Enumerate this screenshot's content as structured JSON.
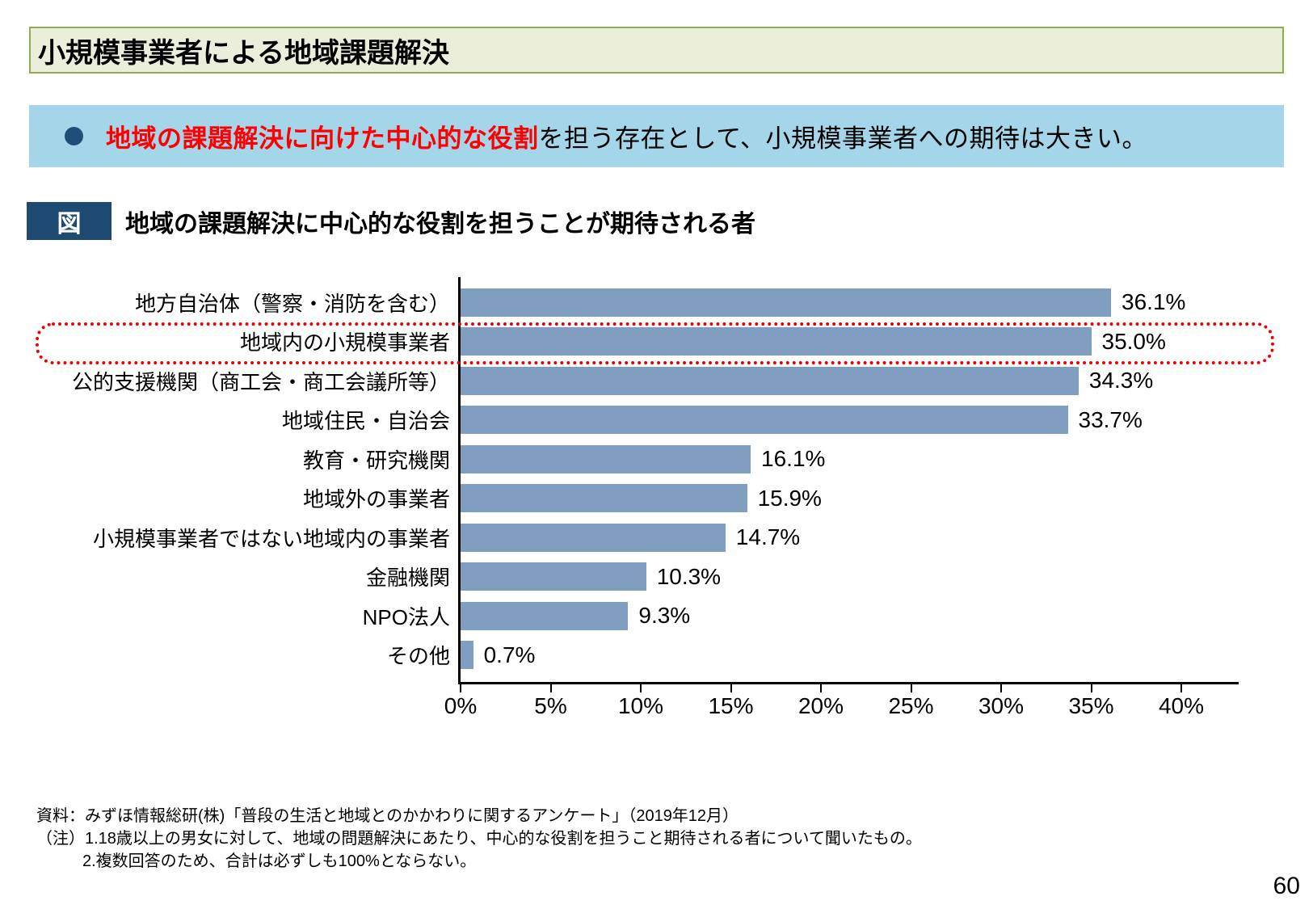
{
  "page": {
    "title": "小規模事業者による地域課題解決",
    "page_number": "60"
  },
  "lead": {
    "highlight": "地域の課題解決に向けた中心的な役割",
    "rest": "を担う存在として、小規模事業者への期待は大きい。"
  },
  "figure": {
    "tag": "図",
    "caption": "地域の課題解決に中心的な役割を担うことが期待される者"
  },
  "chart_data": {
    "type": "bar",
    "orientation": "horizontal",
    "title": "地域の課題解決に中心的な役割を担うことが期待される者",
    "categories": [
      "地方自治体（警察・消防を含む）",
      "地域内の小規模事業者",
      "公的支援機関（商工会・商工会議所等）",
      "地域住民・自治会",
      "教育・研究機関",
      "地域外の事業者",
      "小規模事業者ではない地域内の事業者",
      "金融機関",
      "NPO法人",
      "その他"
    ],
    "values": [
      36.1,
      35.0,
      34.3,
      33.7,
      16.1,
      15.9,
      14.7,
      10.3,
      9.3,
      0.7
    ],
    "value_labels": [
      "36.1%",
      "35.0%",
      "34.3%",
      "33.7%",
      "16.1%",
      "15.9%",
      "14.7%",
      "10.3%",
      "9.3%",
      "0.7%"
    ],
    "unit": "%",
    "xlim": [
      0,
      43
    ],
    "xticks": [
      "0%",
      "5%",
      "10%",
      "15%",
      "20%",
      "25%",
      "30%",
      "35%",
      "40%"
    ],
    "xtick_values": [
      0,
      5,
      10,
      15,
      20,
      25,
      30,
      35,
      40
    ],
    "grid": false,
    "legend": false,
    "bar_color": "#7f9ec0",
    "highlight_index": 1,
    "highlight_style": "red dotted rounded box around 地域内の小規模事業者 row"
  },
  "footnotes": {
    "source": "資料：みずほ情報総研(株)「普段の生活と地域とのかかわりに関するアンケート」（2019年12月）",
    "note_line1": "（注）1.18歳以上の男女に対して、地域の問題解決にあたり、中心的な役割を担うこと期待される者について聞いたもの。",
    "note_line2": "2.複数回答のため、合計は必ずしも100%とならない。"
  },
  "colors": {
    "title_bg": "#eaeeda",
    "title_border": "#8fad4c",
    "lead_bg": "#a4d5e8",
    "navy": "#1f4e79",
    "accent_red": "#ff0000",
    "bar": "#7f9ec0"
  }
}
